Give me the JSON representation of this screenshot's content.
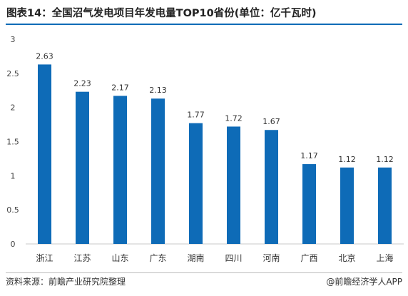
{
  "title": "图表14：全国沼气发电项目年发电量TOP10省份(单位：亿千瓦时)",
  "source": "资料来源：前瞻产业研究院整理",
  "brand": "@前瞻经济学人APP",
  "colors": {
    "bar": "#0e6bb7",
    "accent_rule": "#0e6bb7",
    "axis": "#c8c8c8"
  },
  "chart_data": {
    "type": "bar",
    "title": "图表14：全国沼气发电项目年发电量TOP10省份(单位：亿千瓦时)",
    "xlabel": "",
    "ylabel": "",
    "ylim": [
      0,
      3
    ],
    "yticks": [
      "0",
      "0.5",
      "1",
      "1.5",
      "2",
      "2.5",
      "3"
    ],
    "grid": false,
    "legend": "none",
    "categories": [
      "浙江",
      "江苏",
      "山东",
      "广东",
      "湖南",
      "四川",
      "河南",
      "广西",
      "北京",
      "上海"
    ],
    "values": [
      2.63,
      2.23,
      2.17,
      2.13,
      1.77,
      1.72,
      1.67,
      1.17,
      1.12,
      1.12
    ],
    "value_labels": [
      "2.63",
      "2.23",
      "2.17",
      "2.13",
      "1.77",
      "1.72",
      "1.67",
      "1.17",
      "1.12",
      "1.12"
    ]
  }
}
